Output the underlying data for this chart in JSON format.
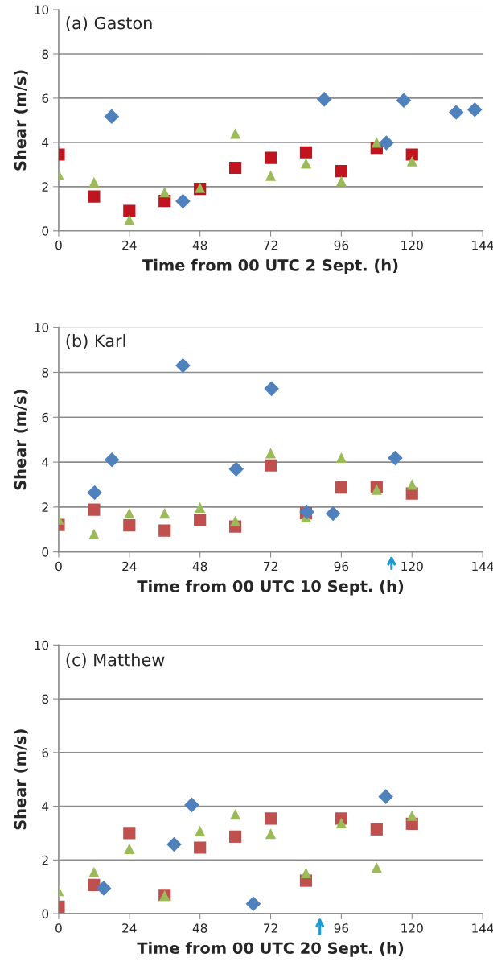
{
  "chart_data": [
    {
      "type": "scatter",
      "title": "(a) Gaston",
      "xlabel": "Time from 00 UTC 2 Sept. (h)",
      "ylabel": "Shear (m/s)",
      "xlim": [
        0,
        144
      ],
      "xticks": [
        0,
        24,
        48,
        72,
        96,
        120,
        144
      ],
      "ylim": [
        0,
        10
      ],
      "yticks": [
        0,
        2,
        4,
        6,
        8,
        10
      ],
      "grid": "y",
      "legend": false,
      "series": [
        {
          "color": "#4f81bd",
          "marker": "diamond",
          "x": [
            18,
            42.2,
            90.2,
            111.3,
            117.2,
            135,
            141.3
          ],
          "values": [
            5.17,
            1.34,
            5.95,
            3.98,
            5.9,
            5.36,
            5.48
          ]
        },
        {
          "color": "#c0141e",
          "marker": "square",
          "x": [
            0,
            12,
            24,
            36,
            48,
            60,
            72,
            84,
            96,
            108,
            120
          ],
          "values": [
            3.45,
            1.55,
            0.9,
            1.35,
            1.9,
            2.85,
            3.3,
            3.55,
            2.7,
            3.75,
            3.45
          ]
        },
        {
          "color": "#9bbb59",
          "marker": "triangle",
          "x": [
            0,
            12,
            24,
            36,
            48,
            60,
            72,
            84,
            96,
            108,
            120
          ],
          "values": [
            2.55,
            2.2,
            0.5,
            1.75,
            1.95,
            4.4,
            2.5,
            3.05,
            2.25,
            4.0,
            3.15
          ]
        }
      ]
    },
    {
      "type": "scatter",
      "title": "(b) Karl",
      "xlabel": "Time from 00 UTC 10 Sept. (h)",
      "ylabel": "Shear (m/s)",
      "xlim": [
        0,
        144
      ],
      "xticks": [
        0,
        24,
        48,
        72,
        96,
        120,
        144
      ],
      "ylim": [
        0,
        10
      ],
      "yticks": [
        0,
        2,
        4,
        6,
        8,
        10
      ],
      "grid": "y",
      "legend": false,
      "series": [
        {
          "color": "#4f81bd",
          "marker": "diamond",
          "x": [
            12.2,
            18.1,
            42.2,
            60.3,
            72.3,
            84.3,
            93.2,
            114.3
          ],
          "values": [
            2.64,
            4.1,
            8.3,
            3.69,
            7.27,
            1.78,
            1.71,
            4.18
          ]
        },
        {
          "color": "#c0504d",
          "marker": "square",
          "x": [
            0,
            12,
            24,
            36,
            48,
            60,
            72,
            84,
            96,
            108,
            120
          ],
          "values": [
            1.2,
            1.88,
            1.18,
            0.95,
            1.42,
            1.13,
            3.85,
            1.72,
            2.87,
            2.88,
            2.6
          ]
        },
        {
          "color": "#9bbb59",
          "marker": "triangle",
          "x": [
            0,
            12,
            24,
            36,
            48,
            60,
            72,
            84,
            96,
            108,
            120
          ],
          "values": [
            1.45,
            0.8,
            1.72,
            1.72,
            1.98,
            1.38,
            4.4,
            1.55,
            4.2,
            2.78,
            3.0
          ]
        }
      ]
    },
    {
      "type": "scatter",
      "title": "(c) Matthew",
      "xlabel": "Time from 00 UTC 20 Sept. (h)",
      "ylabel": "Shear (m/s)",
      "xlim": [
        0,
        144
      ],
      "xticks": [
        0,
        24,
        48,
        72,
        96,
        120,
        144
      ],
      "ylim": [
        0,
        10
      ],
      "yticks": [
        0,
        2,
        4,
        6,
        8,
        10
      ],
      "grid": "y",
      "legend": false,
      "series": [
        {
          "color": "#4f81bd",
          "marker": "diamond",
          "x": [
            15.3,
            39.2,
            45.2,
            66.1,
            111.1
          ],
          "values": [
            0.95,
            2.58,
            4.05,
            0.37,
            4.36
          ]
        },
        {
          "color": "#c0504d",
          "marker": "square",
          "x": [
            0,
            12,
            24,
            36,
            48,
            60,
            72,
            84,
            96,
            108,
            120
          ],
          "values": [
            0.26,
            1.07,
            3.0,
            0.7,
            2.46,
            2.87,
            3.54,
            1.23,
            3.54,
            3.14,
            3.35
          ]
        },
        {
          "color": "#9bbb59",
          "marker": "triangle",
          "x": [
            0,
            12,
            24,
            36,
            48,
            60,
            72,
            84,
            96,
            108,
            120
          ],
          "values": [
            0.85,
            1.55,
            2.42,
            0.68,
            3.08,
            3.7,
            2.98,
            1.52,
            3.38,
            1.72,
            3.65
          ]
        }
      ]
    }
  ]
}
